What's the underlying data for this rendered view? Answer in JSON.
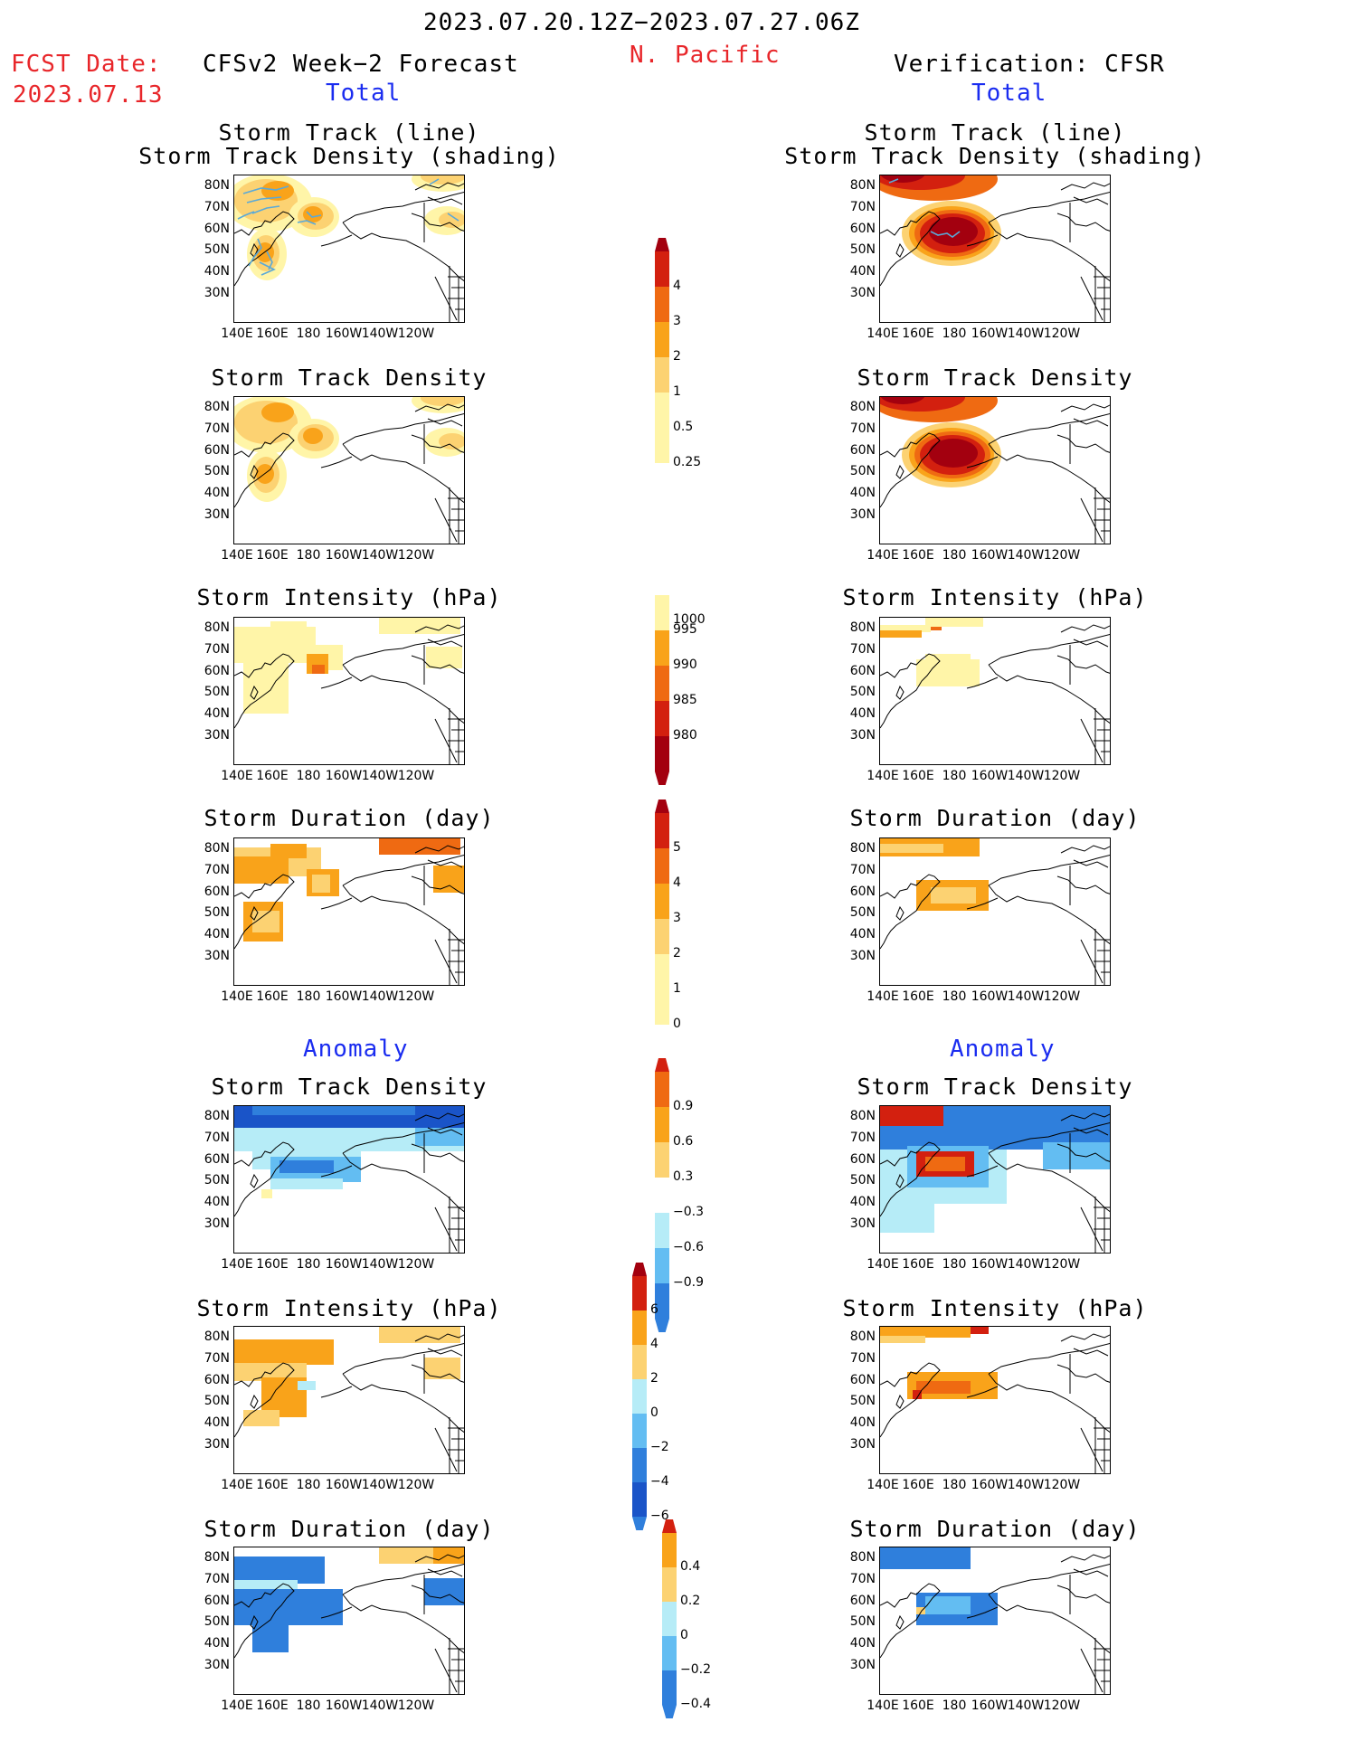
{
  "header": {
    "period": "2023.07.20.12Z−2023.07.27.06Z",
    "region": "N. Pacific",
    "fcst_label": "FCST Date:",
    "fcst_date": "2023.07.13",
    "left_title": "CFSv2 Week−2 Forecast",
    "right_title": "Verification: CFSR",
    "total": "Total",
    "anomaly": "Anomaly"
  },
  "axes": {
    "lat_labels": [
      "80N",
      "70N",
      "60N",
      "50N",
      "40N",
      "30N"
    ],
    "lon_labels": [
      "140E",
      "160E",
      "180",
      "160W",
      "140W",
      "120W"
    ]
  },
  "panels": {
    "storm_track_line_1": "Storm Track (line)",
    "storm_track_line_2": "Storm Track Density (shading)",
    "density": "Storm Track Density",
    "intensity": "Storm Intensity (hPa)",
    "duration": "Storm Duration (day)"
  },
  "colorbars": {
    "density": [
      "4",
      "3",
      "2",
      "1",
      "0.5",
      "0.25"
    ],
    "intensity": [
      "1000",
      "995",
      "990",
      "985",
      "980"
    ],
    "duration": [
      "5",
      "4",
      "3",
      "2",
      "1",
      "0"
    ],
    "density_anom": [
      "0.9",
      "0.6",
      "0.3",
      "−0.3",
      "−0.6",
      "−0.9"
    ],
    "intensity_anom": [
      "6",
      "4",
      "2",
      "0",
      "−2",
      "−4",
      "−6"
    ],
    "duration_anom": [
      "0.4",
      "0.2",
      "0",
      "−0.2",
      "−0.4"
    ]
  },
  "colors": {
    "light_yellow": "#fff5a8",
    "yellow_orange": "#fcd272",
    "orange": "#f9a31a",
    "dark_orange": "#ef6a12",
    "red": "#d3200f",
    "dark_red": "#a3000f",
    "light_blue": "#b6ecf7",
    "mid_blue": "#63bdf2",
    "blue": "#2f7fdc",
    "deep_blue": "#1a54c8",
    "track_line": "#5aa9d8"
  }
}
